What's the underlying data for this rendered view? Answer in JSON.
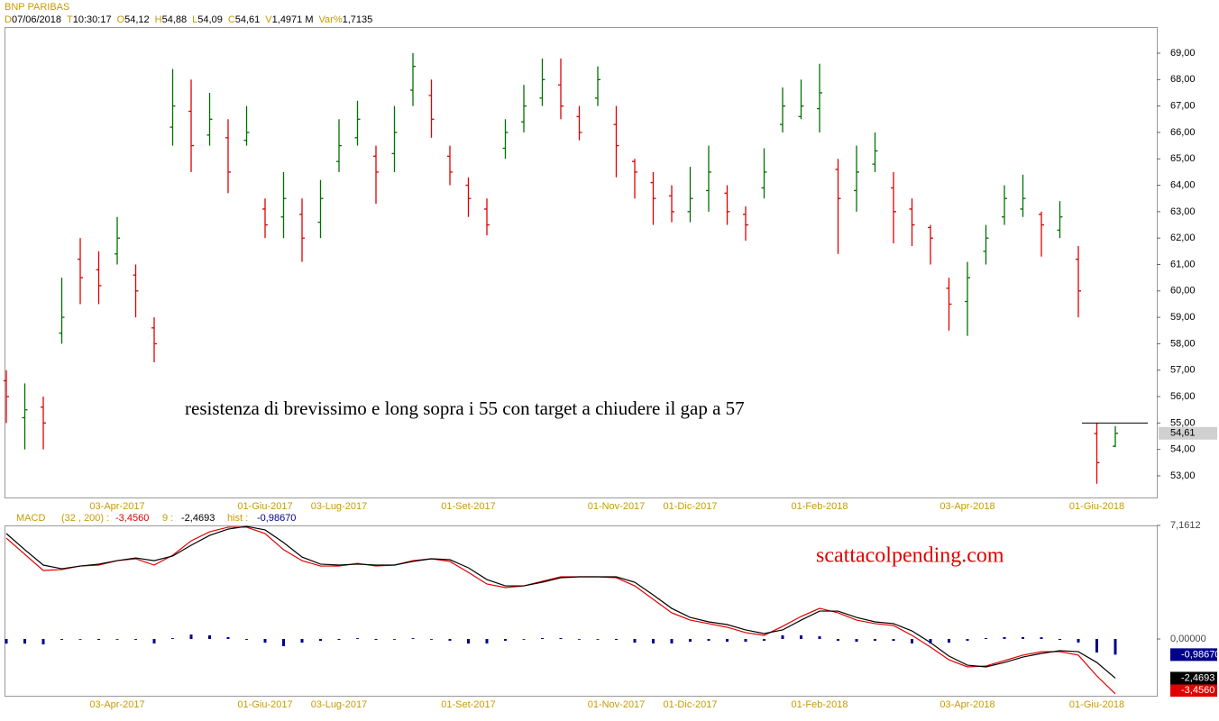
{
  "chart_data": [
    {
      "type": "ohlc",
      "title": "BNP PARIBAS",
      "header": [
        {
          "key": "D",
          "value": "07/06/2018"
        },
        {
          "key": "T",
          "value": "10:30:17"
        },
        {
          "key": "O",
          "value": "54,12"
        },
        {
          "key": "H",
          "value": "54,88"
        },
        {
          "key": "L",
          "value": "54,09"
        },
        {
          "key": "C",
          "value": "54,61"
        },
        {
          "key": "V",
          "value": "1,4971 M"
        },
        {
          "key": "Var%",
          "value": "1,7135"
        }
      ],
      "categories": [
        null,
        null,
        null,
        null,
        null,
        null,
        "03-Apr-2017",
        null,
        null,
        null,
        null,
        null,
        null,
        null,
        "01-Giu-2017",
        null,
        null,
        null,
        "03-Lug-2017",
        null,
        null,
        null,
        null,
        null,
        null,
        "01-Set-2017",
        null,
        null,
        null,
        null,
        null,
        null,
        null,
        "01-Nov-2017",
        null,
        null,
        null,
        "01-Dic-2017",
        null,
        null,
        null,
        null,
        null,
        null,
        "01-Feb-2018",
        null,
        null,
        null,
        null,
        null,
        null,
        null,
        "03-Apr-2018",
        null,
        null,
        null,
        null,
        null,
        null,
        "01-Giu-2018",
        null
      ],
      "open": [
        56.6,
        55.2,
        55.6,
        58.4,
        61.2,
        60.8,
        61.4,
        60.6,
        58.6,
        66.2,
        66.8,
        65.9,
        65.8,
        65.7,
        63.1,
        62.8,
        62.9,
        62.6,
        64.9,
        65.8,
        65.1,
        65.2,
        67.6,
        67.4,
        65.1,
        64,
        63.1,
        65.4,
        66.4,
        67.3,
        67.8,
        66.6,
        67.3,
        66.3,
        64.9,
        64.1,
        63.6,
        63,
        63.8,
        63.7,
        62.9,
        63.9,
        66.3,
        66.6,
        66.9,
        64.6,
        63.8,
        64.8,
        63.9,
        63.1,
        62.4,
        60.1,
        59.6,
        61.5,
        62.8,
        63.1,
        62.9,
        62.3,
        61.2,
        54.6,
        54.12
      ],
      "high": [
        57,
        56.5,
        56,
        60.5,
        62,
        61.5,
        62.8,
        61,
        59,
        68.4,
        68,
        67.5,
        66.5,
        67,
        63.5,
        64.5,
        63.5,
        64.2,
        66.5,
        67.2,
        65.5,
        67,
        69,
        68,
        65.5,
        64.3,
        63.5,
        66.5,
        67.8,
        68.8,
        68.8,
        67,
        68.5,
        67,
        65,
        64.5,
        64,
        64.7,
        65.5,
        64,
        63.2,
        65.4,
        67.7,
        68,
        68.6,
        65,
        65.5,
        66,
        64.5,
        63.5,
        62.5,
        60.5,
        61.1,
        62.5,
        64,
        64.4,
        63,
        63.4,
        61.7,
        55,
        54.88
      ],
      "low": [
        55,
        54,
        54,
        58,
        59.5,
        59.5,
        61,
        59,
        57.3,
        65.5,
        64.5,
        65.5,
        63.7,
        65.5,
        62,
        62,
        61.1,
        62,
        64.5,
        65.5,
        63.3,
        64.5,
        67,
        65.8,
        64,
        62.8,
        62.1,
        65,
        66,
        67,
        66.5,
        65.7,
        67,
        64.3,
        63.5,
        62.5,
        62.6,
        62.6,
        63,
        62.5,
        61.9,
        63.5,
        66,
        66.5,
        66,
        61.4,
        63,
        64.5,
        61.8,
        61.7,
        61,
        58.5,
        58.3,
        61,
        62.5,
        62.8,
        61.3,
        62,
        59,
        52.7,
        54.09
      ],
      "close": [
        56,
        55.5,
        55,
        59,
        60.5,
        60.2,
        62,
        60,
        58,
        67,
        65.5,
        66.5,
        64.5,
        66,
        62.5,
        63.5,
        62,
        63.5,
        65.5,
        66.5,
        64.5,
        66,
        68.5,
        66.5,
        64.5,
        63.5,
        62.5,
        66,
        67,
        68,
        67,
        66,
        68,
        65.5,
        64.5,
        63.5,
        63,
        63.5,
        64.5,
        63,
        62.5,
        64.5,
        67,
        67,
        67.5,
        63.5,
        64.5,
        65.3,
        63,
        62.5,
        62,
        59.5,
        60.5,
        62,
        63.5,
        63.5,
        62.5,
        62.8,
        60,
        53.5,
        54.61
      ],
      "up_color": "#007000",
      "down_color": "#e00000",
      "ylim": [
        52.18,
        69.99
      ],
      "yticks": [
        {
          "value": 53,
          "label": "53,00"
        },
        {
          "value": 54,
          "label": "54,00"
        },
        {
          "value": 55,
          "label": "55,00"
        },
        {
          "value": 56,
          "label": "56,00"
        },
        {
          "value": 57,
          "label": "57,00"
        },
        {
          "value": 58,
          "label": "58,00"
        },
        {
          "value": 59,
          "label": "59,00"
        },
        {
          "value": 60,
          "label": "60,00"
        },
        {
          "value": 61,
          "label": "61,00"
        },
        {
          "value": 62,
          "label": "62,00"
        },
        {
          "value": 63,
          "label": "63,00"
        },
        {
          "value": 64,
          "label": "64,00"
        },
        {
          "value": 65,
          "label": "65,00"
        },
        {
          "value": 66,
          "label": "66,00"
        },
        {
          "value": 67,
          "label": "67,00"
        },
        {
          "value": 68,
          "label": "68,00"
        },
        {
          "value": 69,
          "label": "69,00"
        }
      ],
      "hline": 55,
      "last": {
        "value": 54.61,
        "label": "54,61"
      },
      "annotation": "resistenza di brevissimo e long sopra i 55 con target a chiudere il gap a 57"
    },
    {
      "type": "macd",
      "title": "MACD",
      "categories": [
        null,
        null,
        null,
        null,
        null,
        null,
        "03-Apr-2017",
        null,
        null,
        null,
        null,
        null,
        null,
        null,
        "01-Giu-2017",
        null,
        null,
        null,
        "03-Lug-2017",
        null,
        null,
        null,
        null,
        null,
        null,
        "01-Set-2017",
        null,
        null,
        null,
        null,
        null,
        null,
        null,
        "01-Nov-2017",
        null,
        null,
        null,
        "01-Dic-2017",
        null,
        null,
        null,
        null,
        null,
        null,
        "01-Feb-2018",
        null,
        null,
        null,
        null,
        null,
        null,
        null,
        "03-Apr-2018",
        null,
        null,
        null,
        null,
        null,
        null,
        "01-Giu-2018",
        null
      ],
      "series": [
        {
          "name": "(32 , 200) :",
          "color": "#e00000",
          "value_label": "-3,4560",
          "values": [
            6.36,
            5.34,
            4.32,
            4.38,
            4.6,
            4.66,
            4.94,
            5.06,
            4.66,
            5.28,
            6.19,
            6.76,
            7.05,
            7.05,
            6.65,
            5.63,
            4.94,
            4.6,
            4.6,
            4.77,
            4.6,
            4.66,
            4.94,
            5.06,
            4.89,
            4.2,
            3.47,
            3.24,
            3.35,
            3.64,
            3.92,
            3.92,
            3.92,
            3.86,
            3.35,
            2.5,
            1.65,
            1.19,
            0.97,
            0.74,
            0.4,
            0.23,
            0.8,
            1.42,
            1.93,
            1.65,
            1.19,
            0.97,
            0.85,
            0.23,
            -0.51,
            -1.31,
            -1.76,
            -1.7,
            -1.36,
            -1.02,
            -0.8,
            -0.8,
            -1.02,
            -2.33,
            -3.456
          ]
        },
        {
          "name": "9 :",
          "color": "#000000",
          "value_label": "-2,4693",
          "values": [
            6.65,
            5.63,
            4.66,
            4.43,
            4.6,
            4.72,
            4.94,
            5.11,
            4.94,
            5.23,
            5.91,
            6.53,
            6.93,
            7.1,
            6.88,
            6.08,
            5.17,
            4.72,
            4.66,
            4.72,
            4.66,
            4.66,
            4.89,
            5.06,
            5.0,
            4.49,
            3.75,
            3.35,
            3.35,
            3.58,
            3.86,
            3.92,
            3.92,
            3.92,
            3.58,
            2.78,
            1.93,
            1.36,
            1.08,
            0.91,
            0.57,
            0.34,
            0.57,
            1.19,
            1.76,
            1.76,
            1.36,
            1.08,
            0.97,
            0.51,
            -0.23,
            -1.08,
            -1.65,
            -1.76,
            -1.48,
            -1.14,
            -0.91,
            -0.74,
            -0.8,
            -1.48,
            -2.4693
          ]
        },
        {
          "name": "hist :",
          "color": "#00008b",
          "value_label": "-0,98670",
          "kind": "bar",
          "values": [
            -0.29,
            -0.29,
            -0.34,
            -0.05,
            0,
            -0.06,
            0,
            -0.05,
            -0.28,
            0.05,
            0.28,
            0.23,
            0.12,
            -0.05,
            -0.23,
            -0.45,
            -0.23,
            -0.12,
            -0.06,
            0.05,
            -0.06,
            0,
            0.05,
            0,
            -0.11,
            -0.29,
            -0.28,
            -0.11,
            0,
            0.06,
            0.06,
            0,
            0,
            -0.06,
            -0.23,
            -0.28,
            -0.28,
            -0.17,
            -0.11,
            -0.17,
            -0.17,
            -0.11,
            0.23,
            0.23,
            0.17,
            -0.11,
            -0.17,
            -0.11,
            -0.12,
            -0.28,
            -0.28,
            -0.23,
            -0.11,
            0.06,
            0.12,
            0.12,
            0.11,
            -0.06,
            -0.22,
            -0.85,
            -0.9867
          ]
        }
      ],
      "ylim": [
        -3.58,
        7.1612
      ],
      "yticks": [
        {
          "value": 7.1612,
          "label": "7,1612"
        },
        {
          "value": 0,
          "label": "0,00000"
        }
      ],
      "watermark": "scattacolpending.com"
    }
  ]
}
